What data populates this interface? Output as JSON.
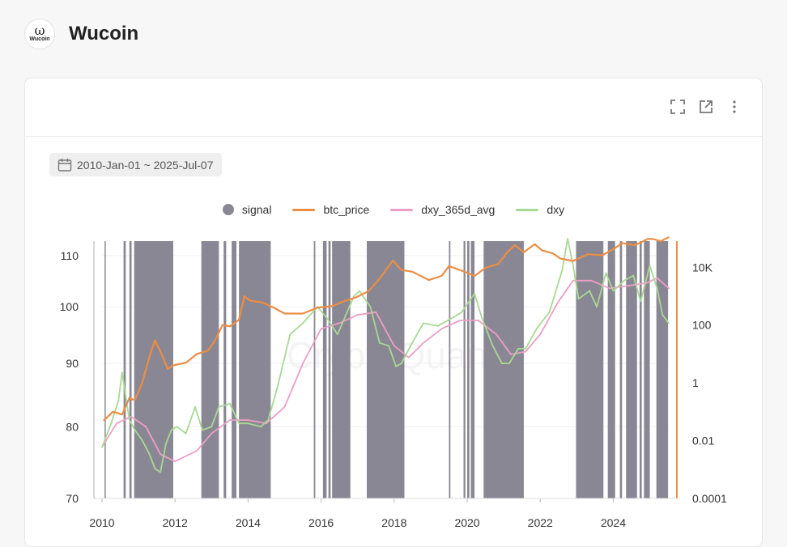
{
  "brand": {
    "logo_text": "Wucoin",
    "logo_mark": "ω",
    "name": "Wucoin"
  },
  "toolbar": {
    "icons": [
      "fullscreen-icon",
      "external-link-icon",
      "more-vertical-icon"
    ]
  },
  "date_range": {
    "icon": "calendar-icon",
    "label": "2010-Jan-01 ~ 2025-Jul-07"
  },
  "watermark": "CryptoQuant",
  "colors": {
    "signal": "#8a8794",
    "btc_price": "#ec8d44",
    "dxy_365d_avg": "#ee9ec6",
    "dxy": "#a7d993"
  },
  "chart_data": {
    "type": "line",
    "x_range": [
      2010.0,
      2025.52
    ],
    "x_ticks": [
      "2010",
      "2012",
      "2014",
      "2016",
      "2018",
      "2020",
      "2022",
      "2024"
    ],
    "left_axis": {
      "ticks": [
        "70",
        "80",
        "90",
        "100",
        "110"
      ],
      "ylim": [
        70,
        113
      ]
    },
    "right_axis": {
      "scale": "log",
      "ticks": [
        "0.0001",
        "0.01",
        "1",
        "100",
        "10K"
      ],
      "ylim": [
        0.0001,
        80000
      ]
    },
    "legend": [
      "signal",
      "btc_price",
      "dxy_365d_avg",
      "dxy"
    ],
    "series": [
      {
        "name": "btc_price",
        "axis": "right",
        "points": [
          [
            2010.05,
            0.05
          ],
          [
            2010.3,
            0.1
          ],
          [
            2010.55,
            0.08
          ],
          [
            2010.75,
            0.3
          ],
          [
            2010.9,
            0.25
          ],
          [
            2011.1,
            1
          ],
          [
            2011.3,
            8
          ],
          [
            2011.45,
            30
          ],
          [
            2011.6,
            12
          ],
          [
            2011.8,
            3
          ],
          [
            2011.95,
            4
          ],
          [
            2012.3,
            5
          ],
          [
            2012.6,
            10
          ],
          [
            2012.9,
            13
          ],
          [
            2013.1,
            30
          ],
          [
            2013.3,
            100
          ],
          [
            2013.5,
            90
          ],
          [
            2013.75,
            150
          ],
          [
            2013.9,
            1000
          ],
          [
            2014.05,
            700
          ],
          [
            2014.4,
            600
          ],
          [
            2014.7,
            400
          ],
          [
            2015.0,
            250
          ],
          [
            2015.5,
            250
          ],
          [
            2015.9,
            400
          ],
          [
            2016.3,
            450
          ],
          [
            2016.6,
            650
          ],
          [
            2016.95,
            900
          ],
          [
            2017.3,
            1500
          ],
          [
            2017.6,
            4000
          ],
          [
            2017.96,
            17000
          ],
          [
            2018.2,
            8000
          ],
          [
            2018.5,
            7000
          ],
          [
            2018.95,
            3600
          ],
          [
            2019.3,
            5000
          ],
          [
            2019.5,
            11000
          ],
          [
            2019.9,
            7200
          ],
          [
            2020.2,
            5000
          ],
          [
            2020.5,
            9500
          ],
          [
            2020.85,
            13000
          ],
          [
            2021.1,
            33000
          ],
          [
            2021.3,
            58000
          ],
          [
            2021.55,
            33000
          ],
          [
            2021.85,
            63000
          ],
          [
            2022.05,
            38000
          ],
          [
            2022.35,
            30000
          ],
          [
            2022.55,
            20000
          ],
          [
            2022.9,
            16500
          ],
          [
            2023.3,
            28000
          ],
          [
            2023.7,
            26000
          ],
          [
            2024.0,
            42000
          ],
          [
            2024.25,
            68000
          ],
          [
            2024.6,
            58000
          ],
          [
            2024.95,
            96000
          ],
          [
            2025.1,
            94000
          ],
          [
            2025.3,
            80000
          ],
          [
            2025.52,
            108000
          ]
        ]
      },
      {
        "name": "dxy_365d_avg",
        "axis": "left",
        "points": [
          [
            2010.0,
            77
          ],
          [
            2010.4,
            80.5
          ],
          [
            2010.8,
            81.5
          ],
          [
            2011.2,
            80
          ],
          [
            2011.6,
            76
          ],
          [
            2012.0,
            75
          ],
          [
            2012.6,
            76.5
          ],
          [
            2013.0,
            79
          ],
          [
            2013.5,
            81
          ],
          [
            2014.0,
            81
          ],
          [
            2014.5,
            80.5
          ],
          [
            2015.0,
            83
          ],
          [
            2015.5,
            90
          ],
          [
            2016.0,
            96
          ],
          [
            2016.5,
            97
          ],
          [
            2017.0,
            98.5
          ],
          [
            2017.5,
            99
          ],
          [
            2018.0,
            93
          ],
          [
            2018.4,
            91
          ],
          [
            2018.8,
            93.5
          ],
          [
            2019.3,
            96
          ],
          [
            2019.8,
            97.5
          ],
          [
            2020.3,
            97.5
          ],
          [
            2020.8,
            95
          ],
          [
            2021.2,
            91.5
          ],
          [
            2021.6,
            92
          ],
          [
            2022.0,
            95
          ],
          [
            2022.5,
            101
          ],
          [
            2022.9,
            105
          ],
          [
            2023.4,
            105
          ],
          [
            2023.9,
            103.5
          ],
          [
            2024.4,
            104
          ],
          [
            2024.9,
            104.5
          ],
          [
            2025.2,
            105.5
          ],
          [
            2025.52,
            103.5
          ]
        ]
      },
      {
        "name": "dxy",
        "axis": "left",
        "points": [
          [
            2010.0,
            77
          ],
          [
            2010.25,
            80.5
          ],
          [
            2010.45,
            84
          ],
          [
            2010.55,
            88.5
          ],
          [
            2010.75,
            81
          ],
          [
            2010.9,
            79.5
          ],
          [
            2011.1,
            78
          ],
          [
            2011.3,
            76
          ],
          [
            2011.45,
            74
          ],
          [
            2011.6,
            73.5
          ],
          [
            2011.75,
            77.5
          ],
          [
            2011.9,
            79.5
          ],
          [
            2012.05,
            80
          ],
          [
            2012.3,
            79
          ],
          [
            2012.55,
            83
          ],
          [
            2012.75,
            79.5
          ],
          [
            2013.0,
            80
          ],
          [
            2013.2,
            83
          ],
          [
            2013.5,
            83.5
          ],
          [
            2013.75,
            80.5
          ],
          [
            2014.0,
            80.5
          ],
          [
            2014.35,
            80
          ],
          [
            2014.55,
            81
          ],
          [
            2014.8,
            86
          ],
          [
            2015.15,
            95
          ],
          [
            2015.5,
            97
          ],
          [
            2015.9,
            100
          ],
          [
            2016.15,
            98
          ],
          [
            2016.45,
            95
          ],
          [
            2016.9,
            102
          ],
          [
            2017.05,
            103
          ],
          [
            2017.35,
            100
          ],
          [
            2017.6,
            93.5
          ],
          [
            2017.85,
            93
          ],
          [
            2018.05,
            89.5
          ],
          [
            2018.2,
            90
          ],
          [
            2018.45,
            93
          ],
          [
            2018.8,
            97
          ],
          [
            2019.2,
            96.5
          ],
          [
            2019.6,
            98
          ],
          [
            2019.85,
            99
          ],
          [
            2020.2,
            102.5
          ],
          [
            2020.4,
            98
          ],
          [
            2020.7,
            93
          ],
          [
            2020.95,
            90
          ],
          [
            2021.15,
            90
          ],
          [
            2021.4,
            92.5
          ],
          [
            2021.6,
            92.5
          ],
          [
            2021.9,
            96
          ],
          [
            2022.25,
            99
          ],
          [
            2022.6,
            107
          ],
          [
            2022.75,
            113.5
          ],
          [
            2022.9,
            108
          ],
          [
            2023.05,
            101.5
          ],
          [
            2023.35,
            103
          ],
          [
            2023.55,
            100
          ],
          [
            2023.8,
            106.5
          ],
          [
            2024.0,
            103
          ],
          [
            2024.3,
            105
          ],
          [
            2024.55,
            106
          ],
          [
            2024.75,
            101
          ],
          [
            2025.0,
            108
          ],
          [
            2025.2,
            103.5
          ],
          [
            2025.35,
            98.5
          ],
          [
            2025.52,
            97
          ]
        ]
      },
      {
        "name": "signal",
        "axis": "band",
        "intervals": [
          [
            2010.07,
            2010.1
          ],
          [
            2010.59,
            2010.65
          ],
          [
            2010.75,
            2010.81
          ],
          [
            2010.88,
            2011.95
          ],
          [
            2012.72,
            2013.2
          ],
          [
            2013.33,
            2013.4
          ],
          [
            2013.55,
            2013.68
          ],
          [
            2013.75,
            2014.62
          ],
          [
            2015.8,
            2015.84
          ],
          [
            2016.05,
            2016.15
          ],
          [
            2016.2,
            2016.26
          ],
          [
            2016.3,
            2016.8
          ],
          [
            2017.25,
            2018.28
          ],
          [
            2019.5,
            2019.54
          ],
          [
            2019.9,
            2019.95
          ],
          [
            2020.0,
            2020.06
          ],
          [
            2020.1,
            2020.2
          ],
          [
            2020.45,
            2021.55
          ],
          [
            2022.98,
            2023.73
          ],
          [
            2023.85,
            2024.05
          ],
          [
            2024.18,
            2024.24
          ],
          [
            2024.35,
            2024.65
          ],
          [
            2024.72,
            2024.78
          ],
          [
            2024.84,
            2025.0
          ],
          [
            2025.18,
            2025.5
          ]
        ]
      }
    ]
  }
}
